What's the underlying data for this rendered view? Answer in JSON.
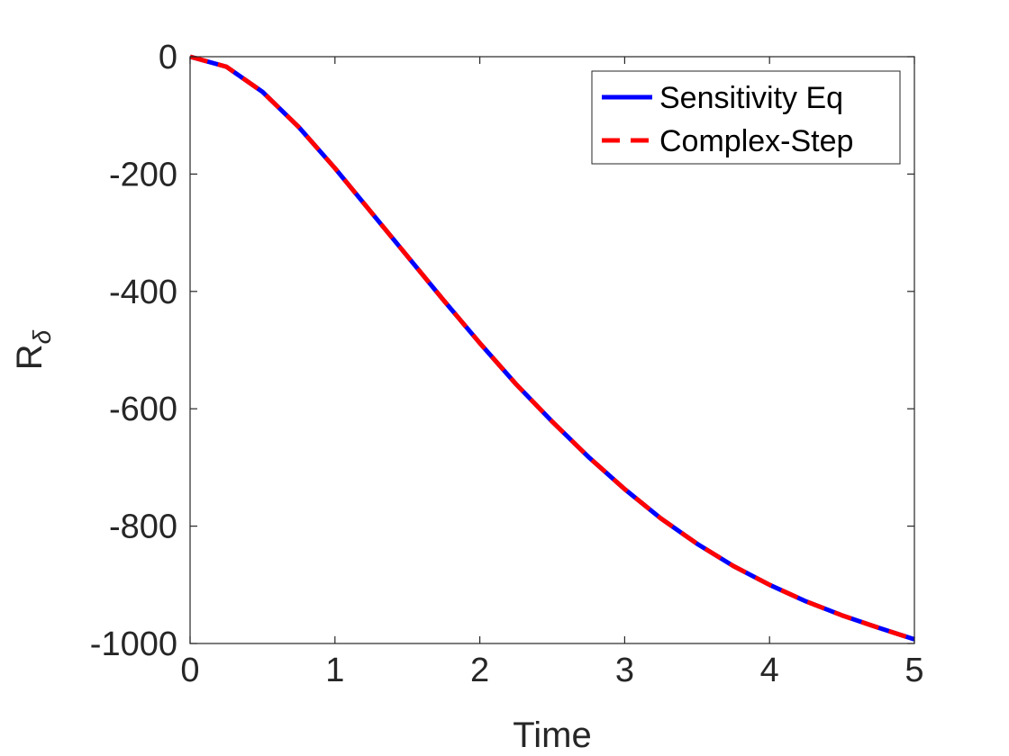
{
  "chart_data": {
    "type": "line",
    "title": "",
    "xlabel": "Time",
    "ylabel_main": "R",
    "ylabel_sub": "δ",
    "xlim": [
      0,
      5
    ],
    "ylim": [
      -1000,
      0
    ],
    "x_ticks": [
      0,
      1,
      2,
      3,
      4,
      5
    ],
    "x_tick_labels": [
      "0",
      "1",
      "2",
      "3",
      "4",
      "5"
    ],
    "y_ticks": [
      0,
      -200,
      -400,
      -600,
      -800,
      -1000
    ],
    "y_tick_labels": [
      "0",
      "-200",
      "-400",
      "-600",
      "-800",
      "-1000"
    ],
    "grid": false,
    "legend_location": "top-right",
    "x": [
      0,
      0.25,
      0.5,
      0.75,
      1,
      1.25,
      1.5,
      1.75,
      2,
      2.25,
      2.5,
      2.75,
      3,
      3.25,
      3.5,
      3.75,
      4,
      4.25,
      4.5,
      4.75,
      5
    ],
    "series": [
      {
        "name": "Sensitivity Eq",
        "color": "#0000ff",
        "style": "solid",
        "values": [
          0,
          -17,
          -60,
          -120,
          -190,
          -265,
          -340,
          -415,
          -488,
          -558,
          -622,
          -682,
          -737,
          -787,
          -830,
          -868,
          -900,
          -928,
          -952,
          -973,
          -993
        ]
      },
      {
        "name": "Complex-Step",
        "color": "#ff0000",
        "style": "dashed",
        "values": [
          0,
          -17,
          -60,
          -120,
          -190,
          -265,
          -340,
          -415,
          -488,
          -558,
          -622,
          -682,
          -737,
          -787,
          -830,
          -868,
          -900,
          -928,
          -952,
          -973,
          -993
        ]
      }
    ]
  }
}
